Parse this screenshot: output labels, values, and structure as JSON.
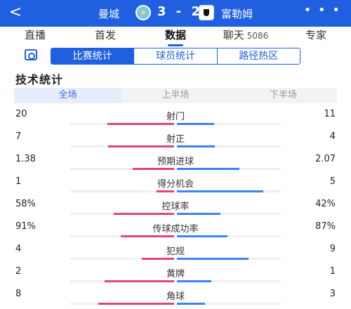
{
  "header": {
    "back_icon": "chevron-left-icon",
    "home_team": "曼城",
    "score": "3 - 2",
    "away_team": "富勒姆",
    "more_icon": "more-dots-icon",
    "more_label": "• • •",
    "back_label": "<"
  },
  "main_tabs": [
    {
      "label": "直播"
    },
    {
      "label": "首发"
    },
    {
      "label": "数据",
      "active": true
    },
    {
      "label": "聊天",
      "count": "5086"
    },
    {
      "label": "专家"
    }
  ],
  "sub_tabs": [
    {
      "label": "比赛统计",
      "active": true
    },
    {
      "label": "球员统计"
    },
    {
      "label": "路径热区"
    }
  ],
  "section_title": "技术统计",
  "period_tabs": [
    {
      "label": "全场",
      "active": true
    },
    {
      "label": "上半场"
    },
    {
      "label": "下半场"
    }
  ],
  "colors": {
    "brand": "#1f5fe0",
    "home_bar": "#e0466e",
    "away_bar": "#3b82f6"
  },
  "stats": [
    {
      "label": "射门",
      "home": "20",
      "away": "11",
      "home_share": 0.645,
      "away_share": 0.355
    },
    {
      "label": "射正",
      "home": "7",
      "away": "4",
      "home_share": 0.636,
      "away_share": 0.364
    },
    {
      "label": "预期进球",
      "home": "1.38",
      "away": "2.07",
      "home_share": 0.4,
      "away_share": 0.6
    },
    {
      "label": "得分机会",
      "home": "1",
      "away": "5",
      "home_share": 0.167,
      "away_share": 0.833
    },
    {
      "label": "控球率",
      "home": "58%",
      "away": "42%",
      "home_share": 0.58,
      "away_share": 0.42
    },
    {
      "label": "传球成功率",
      "home": "91%",
      "away": "87%",
      "home_share": 0.511,
      "away_share": 0.489
    },
    {
      "label": "犯规",
      "home": "4",
      "away": "9",
      "home_share": 0.308,
      "away_share": 0.692
    },
    {
      "label": "黄牌",
      "home": "2",
      "away": "1",
      "home_share": 0.667,
      "away_share": 0.333
    },
    {
      "label": "角球",
      "home": "8",
      "away": "3",
      "home_share": 0.727,
      "away_share": 0.273
    }
  ]
}
